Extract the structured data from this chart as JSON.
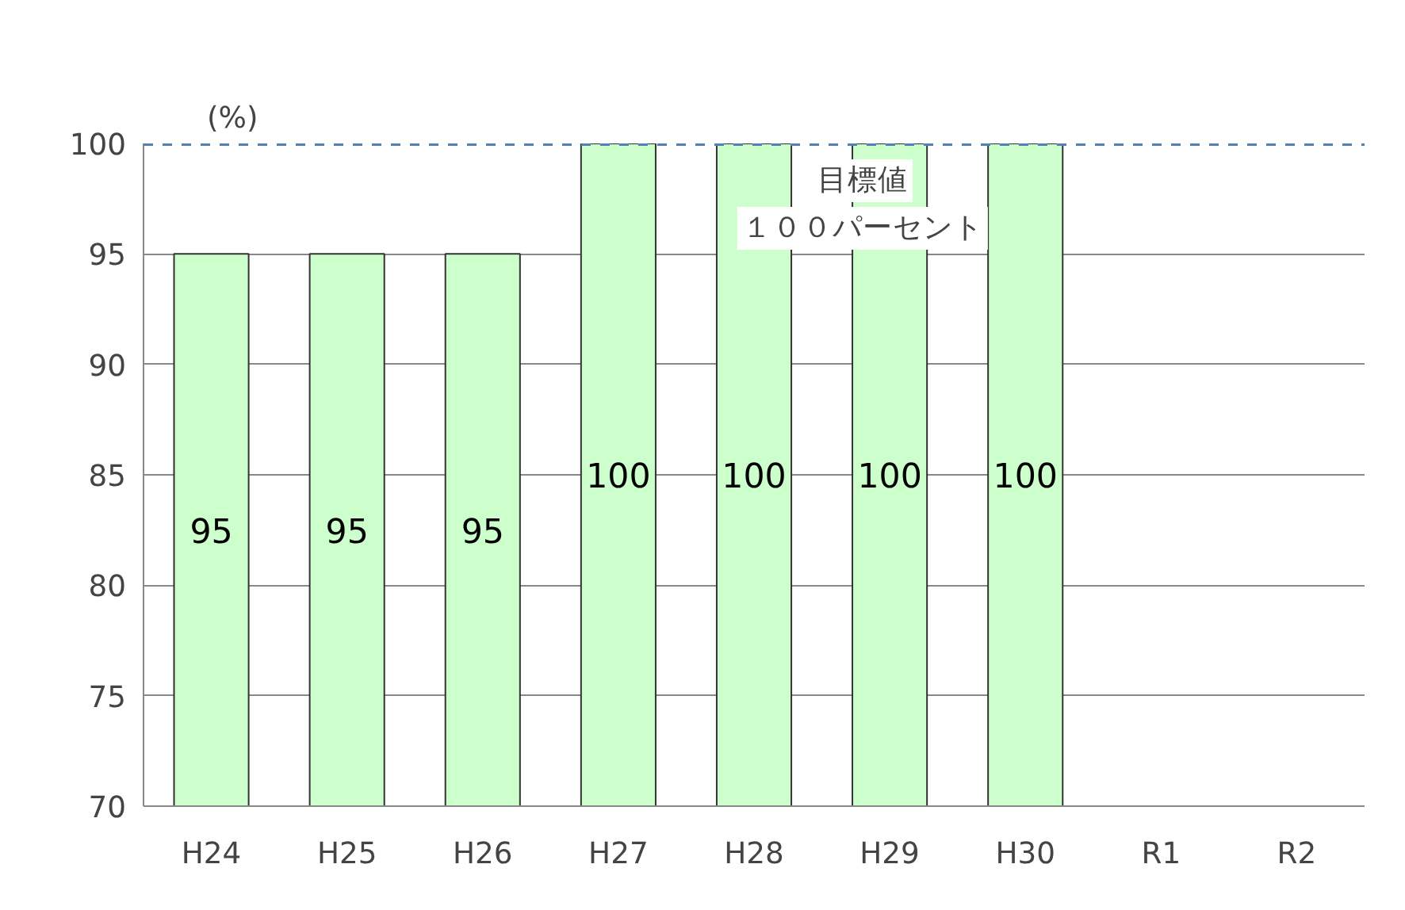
{
  "chart_data": {
    "type": "bar",
    "ylabel": "(%)",
    "categories": [
      "H24",
      "H25",
      "H26",
      "H27",
      "H28",
      "H29",
      "H30",
      "R1",
      "R2"
    ],
    "values": [
      95,
      95,
      95,
      100,
      100,
      100,
      100,
      null,
      null
    ],
    "color": "#ccffcc",
    "ylim": [
      70,
      100
    ],
    "yticks": [
      70,
      75,
      80,
      85,
      90,
      95,
      100
    ],
    "grid": "y",
    "data_labels": true,
    "annotations": [
      "１００パーセント"
    ],
    "ref_lines": [
      {
        "axis": "y",
        "value": 100,
        "label": "目標値",
        "color": "#4f81bd",
        "line_style": "dashed"
      }
    ]
  }
}
